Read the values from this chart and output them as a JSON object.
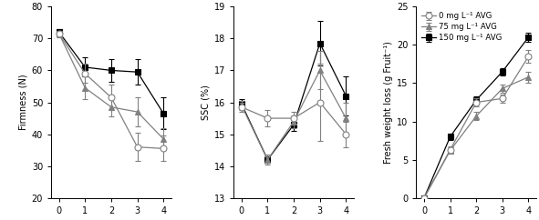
{
  "x": [
    0,
    1,
    2,
    3,
    4
  ],
  "firmness": {
    "circle": [
      71.5,
      59.0,
      51.5,
      36.0,
      35.5
    ],
    "triangle": [
      71.5,
      54.5,
      48.5,
      47.0,
      38.5
    ],
    "square": [
      72.0,
      61.0,
      60.0,
      59.5,
      46.5
    ],
    "circle_err": [
      1.0,
      3.0,
      4.0,
      4.5,
      4.0
    ],
    "triangle_err": [
      1.0,
      3.5,
      3.0,
      4.5,
      3.5
    ],
    "square_err": [
      1.0,
      3.0,
      3.5,
      4.0,
      5.0
    ],
    "ylabel": "Firmness (N)",
    "ylim": [
      20,
      80
    ],
    "yticks": [
      20,
      30,
      40,
      50,
      60,
      70,
      80
    ]
  },
  "ssc": {
    "circle": [
      15.85,
      15.5,
      15.5,
      16.0,
      15.0
    ],
    "triangle": [
      15.9,
      14.2,
      15.4,
      17.0,
      15.5
    ],
    "square": [
      15.95,
      14.2,
      15.3,
      17.85,
      16.2
    ],
    "circle_err": [
      0.15,
      0.25,
      0.2,
      1.2,
      0.4
    ],
    "triangle_err": [
      0.15,
      0.15,
      0.2,
      0.6,
      0.5
    ],
    "square_err": [
      0.15,
      0.1,
      0.2,
      0.7,
      0.6
    ],
    "ylabel": "SSC (%)",
    "ylim": [
      13,
      19
    ],
    "yticks": [
      13,
      14,
      15,
      16,
      17,
      18,
      19
    ]
  },
  "weight": {
    "circle": [
      0.0,
      6.3,
      12.5,
      13.0,
      18.5
    ],
    "triangle": [
      0.0,
      6.2,
      10.7,
      14.3,
      15.8
    ],
    "square": [
      0.0,
      8.0,
      12.8,
      16.5,
      21.0
    ],
    "circle_err": [
      0.0,
      0.4,
      0.5,
      0.5,
      0.8
    ],
    "triangle_err": [
      0.0,
      0.4,
      0.5,
      0.5,
      0.7
    ],
    "square_err": [
      0.0,
      0.4,
      0.5,
      0.5,
      0.6
    ],
    "ylabel": "Fresh weight loss (g Fruit⁻¹)",
    "ylim": [
      0,
      25
    ],
    "yticks": [
      0,
      5,
      10,
      15,
      20,
      25
    ]
  },
  "legend_labels": [
    "0 mg L⁻¹ AVG",
    "75 mg L⁻¹ AVG",
    "150 mg L⁻¹ AVG"
  ],
  "gray_color": "#808080",
  "black_color": "#000000",
  "marker_size": 5,
  "capsize": 2,
  "linewidth": 0.9,
  "elinewidth": 0.8
}
